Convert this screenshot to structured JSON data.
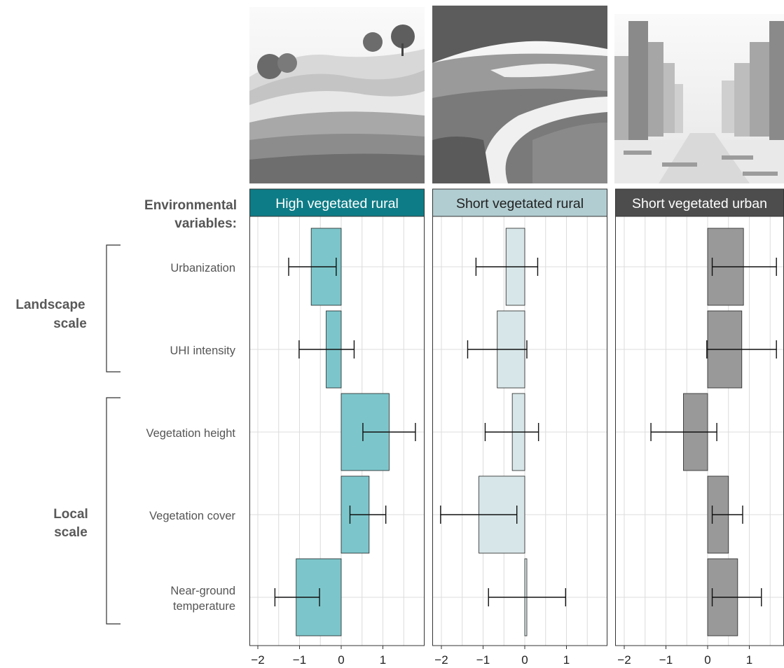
{
  "variables_title_line1": "Environmental",
  "variables_title_line2": "variables:",
  "groups": [
    {
      "label_line1": "Landscape",
      "label_line2": "scale"
    },
    {
      "label_line1": "Local",
      "label_line2": "scale"
    }
  ],
  "colors": {
    "high_vegetated_rural": "#7cc6cb",
    "high_vegetated_rural_header": "#0e7c86",
    "short_vegetated_rural": "#d7e6e8",
    "short_vegetated_rural_header": "#b1cdd1",
    "short_vegetated_urban": "#999999",
    "short_vegetated_urban_header": "#4d4d4d",
    "grid": "#dcdcdc",
    "label_text": "#555555",
    "group_text": "#595959"
  },
  "chart_data": {
    "type": "bar",
    "orientation": "horizontal",
    "grid": true,
    "xlim": [
      -2.3,
      1.9
    ],
    "x_ticks": [
      -2,
      -1,
      0,
      1
    ],
    "x_tick_labels": [
      "−2",
      "−1",
      "0",
      "1"
    ],
    "categories": [
      "Urbanization",
      "UHI intensity",
      "Vegetation height",
      "Vegetation cover",
      "Near-ground temperature"
    ],
    "category_lines": [
      [
        "Urbanization"
      ],
      [
        "UHI intensity"
      ],
      [
        "Vegetation height"
      ],
      [
        "Vegetation cover"
      ],
      [
        "Near-ground ",
        "temperature"
      ]
    ],
    "panels": [
      {
        "name": "High vegetated rural",
        "header_text_color": "#ffffff",
        "values": [
          -0.72,
          -0.36,
          1.15,
          0.67,
          -1.08
        ],
        "ci_low": [
          -1.26,
          -1.01,
          0.52,
          0.21,
          -1.59
        ],
        "ci_high": [
          -0.12,
          0.31,
          1.78,
          1.07,
          -0.52
        ]
      },
      {
        "name": "Short vegetated rural",
        "header_text_color": "#222222",
        "values": [
          -0.45,
          -0.66,
          -0.3,
          -1.1,
          0.05
        ],
        "ci_low": [
          -1.17,
          -1.37,
          -0.95,
          -2.02,
          -0.87
        ],
        "ci_high": [
          0.31,
          0.05,
          0.33,
          -0.19,
          0.98
        ]
      },
      {
        "name": "Short vegetated urban",
        "header_text_color": "#ffffff",
        "values": [
          0.86,
          0.82,
          -0.58,
          0.5,
          0.72
        ],
        "ci_low": [
          0.11,
          -0.02,
          -1.36,
          0.11,
          0.11
        ],
        "ci_high": [
          1.65,
          1.65,
          0.22,
          0.84,
          1.29
        ]
      }
    ]
  }
}
